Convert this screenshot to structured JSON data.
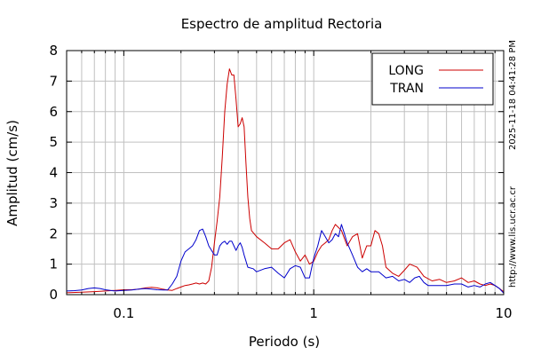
{
  "chart_data": {
    "type": "line",
    "title": "Espectro de amplitud Rectoria",
    "xlabel": "Periodo (s)",
    "ylabel": "Amplitud (cm/s)",
    "x_scale": "log",
    "xlim": [
      0.05,
      10
    ],
    "ylim": [
      0,
      8
    ],
    "x_ticks": [
      0.1,
      1,
      10
    ],
    "x_tick_labels": [
      "0.1",
      "1",
      "10"
    ],
    "y_ticks": [
      0,
      1,
      2,
      3,
      4,
      5,
      6,
      7,
      8
    ],
    "y_tick_labels": [
      "0",
      "1",
      "2",
      "3",
      "4",
      "5",
      "6",
      "7",
      "8"
    ],
    "grid": true,
    "legend_position": "top-right",
    "side_labels": [
      "2025-11-18 04:41:28 PM",
      "http://www.lis.ucr.ac.cr"
    ],
    "series": [
      {
        "name": "LONG",
        "color": "#cc0000",
        "points": [
          [
            0.05,
            0.06
          ],
          [
            0.06,
            0.08
          ],
          [
            0.07,
            0.1
          ],
          [
            0.08,
            0.12
          ],
          [
            0.09,
            0.14
          ],
          [
            0.1,
            0.16
          ],
          [
            0.11,
            0.16
          ],
          [
            0.12,
            0.18
          ],
          [
            0.13,
            0.22
          ],
          [
            0.14,
            0.24
          ],
          [
            0.15,
            0.22
          ],
          [
            0.16,
            0.18
          ],
          [
            0.17,
            0.15
          ],
          [
            0.18,
            0.14
          ],
          [
            0.19,
            0.2
          ],
          [
            0.2,
            0.25
          ],
          [
            0.21,
            0.3
          ],
          [
            0.22,
            0.32
          ],
          [
            0.23,
            0.35
          ],
          [
            0.24,
            0.38
          ],
          [
            0.25,
            0.35
          ],
          [
            0.26,
            0.38
          ],
          [
            0.27,
            0.35
          ],
          [
            0.28,
            0.45
          ],
          [
            0.29,
            0.9
          ],
          [
            0.3,
            1.7
          ],
          [
            0.31,
            2.4
          ],
          [
            0.32,
            3.2
          ],
          [
            0.33,
            4.5
          ],
          [
            0.34,
            6.0
          ],
          [
            0.35,
            6.9
          ],
          [
            0.36,
            7.4
          ],
          [
            0.37,
            7.2
          ],
          [
            0.38,
            7.2
          ],
          [
            0.39,
            6.4
          ],
          [
            0.4,
            5.5
          ],
          [
            0.41,
            5.6
          ],
          [
            0.42,
            5.8
          ],
          [
            0.43,
            5.5
          ],
          [
            0.44,
            4.3
          ],
          [
            0.45,
            3.2
          ],
          [
            0.46,
            2.5
          ],
          [
            0.47,
            2.1
          ],
          [
            0.5,
            1.9
          ],
          [
            0.55,
            1.7
          ],
          [
            0.6,
            1.5
          ],
          [
            0.65,
            1.5
          ],
          [
            0.7,
            1.7
          ],
          [
            0.75,
            1.8
          ],
          [
            0.8,
            1.4
          ],
          [
            0.85,
            1.1
          ],
          [
            0.9,
            1.3
          ],
          [
            0.95,
            1.0
          ],
          [
            1.0,
            1.1
          ],
          [
            1.05,
            1.4
          ],
          [
            1.1,
            1.6
          ],
          [
            1.15,
            1.7
          ],
          [
            1.2,
            1.8
          ],
          [
            1.25,
            2.1
          ],
          [
            1.3,
            2.3
          ],
          [
            1.35,
            2.2
          ],
          [
            1.4,
            2.1
          ],
          [
            1.5,
            1.6
          ],
          [
            1.6,
            1.9
          ],
          [
            1.7,
            2.0
          ],
          [
            1.8,
            1.2
          ],
          [
            1.9,
            1.6
          ],
          [
            2.0,
            1.6
          ],
          [
            2.1,
            2.1
          ],
          [
            2.2,
            2.0
          ],
          [
            2.3,
            1.6
          ],
          [
            2.4,
            0.9
          ],
          [
            2.6,
            0.7
          ],
          [
            2.8,
            0.6
          ],
          [
            3.0,
            0.8
          ],
          [
            3.2,
            1.0
          ],
          [
            3.5,
            0.9
          ],
          [
            3.8,
            0.6
          ],
          [
            4.2,
            0.45
          ],
          [
            4.6,
            0.5
          ],
          [
            5.0,
            0.4
          ],
          [
            5.5,
            0.45
          ],
          [
            6.0,
            0.55
          ],
          [
            6.5,
            0.4
          ],
          [
            7.0,
            0.45
          ],
          [
            7.5,
            0.35
          ],
          [
            8.0,
            0.3
          ],
          [
            8.5,
            0.35
          ],
          [
            9.0,
            0.3
          ],
          [
            9.5,
            0.2
          ],
          [
            10.0,
            0.1
          ]
        ]
      },
      {
        "name": "TRAN",
        "color": "#0000cc",
        "points": [
          [
            0.05,
            0.12
          ],
          [
            0.055,
            0.13
          ],
          [
            0.06,
            0.15
          ],
          [
            0.065,
            0.2
          ],
          [
            0.07,
            0.22
          ],
          [
            0.075,
            0.2
          ],
          [
            0.08,
            0.16
          ],
          [
            0.09,
            0.12
          ],
          [
            0.1,
            0.14
          ],
          [
            0.11,
            0.15
          ],
          [
            0.12,
            0.18
          ],
          [
            0.13,
            0.2
          ],
          [
            0.14,
            0.18
          ],
          [
            0.15,
            0.16
          ],
          [
            0.16,
            0.15
          ],
          [
            0.17,
            0.15
          ],
          [
            0.18,
            0.35
          ],
          [
            0.19,
            0.6
          ],
          [
            0.2,
            1.1
          ],
          [
            0.21,
            1.4
          ],
          [
            0.22,
            1.5
          ],
          [
            0.23,
            1.6
          ],
          [
            0.24,
            1.8
          ],
          [
            0.25,
            2.1
          ],
          [
            0.26,
            2.15
          ],
          [
            0.27,
            1.9
          ],
          [
            0.28,
            1.6
          ],
          [
            0.29,
            1.45
          ],
          [
            0.3,
            1.3
          ],
          [
            0.31,
            1.3
          ],
          [
            0.32,
            1.6
          ],
          [
            0.33,
            1.7
          ],
          [
            0.34,
            1.75
          ],
          [
            0.35,
            1.65
          ],
          [
            0.36,
            1.75
          ],
          [
            0.37,
            1.75
          ],
          [
            0.38,
            1.6
          ],
          [
            0.39,
            1.45
          ],
          [
            0.4,
            1.6
          ],
          [
            0.41,
            1.7
          ],
          [
            0.42,
            1.55
          ],
          [
            0.43,
            1.3
          ],
          [
            0.45,
            0.9
          ],
          [
            0.48,
            0.85
          ],
          [
            0.5,
            0.75
          ],
          [
            0.55,
            0.85
          ],
          [
            0.6,
            0.9
          ],
          [
            0.65,
            0.7
          ],
          [
            0.7,
            0.55
          ],
          [
            0.75,
            0.85
          ],
          [
            0.8,
            0.95
          ],
          [
            0.85,
            0.9
          ],
          [
            0.9,
            0.55
          ],
          [
            0.95,
            0.55
          ],
          [
            1.0,
            1.2
          ],
          [
            1.05,
            1.6
          ],
          [
            1.1,
            2.1
          ],
          [
            1.15,
            1.9
          ],
          [
            1.2,
            1.7
          ],
          [
            1.25,
            1.8
          ],
          [
            1.3,
            2.0
          ],
          [
            1.35,
            1.9
          ],
          [
            1.4,
            2.3
          ],
          [
            1.45,
            2.0
          ],
          [
            1.5,
            1.7
          ],
          [
            1.6,
            1.3
          ],
          [
            1.7,
            0.9
          ],
          [
            1.8,
            0.75
          ],
          [
            1.9,
            0.85
          ],
          [
            2.0,
            0.75
          ],
          [
            2.2,
            0.75
          ],
          [
            2.4,
            0.55
          ],
          [
            2.6,
            0.6
          ],
          [
            2.8,
            0.45
          ],
          [
            3.0,
            0.5
          ],
          [
            3.2,
            0.4
          ],
          [
            3.4,
            0.55
          ],
          [
            3.6,
            0.6
          ],
          [
            3.8,
            0.4
          ],
          [
            4.0,
            0.3
          ],
          [
            4.5,
            0.3
          ],
          [
            5.0,
            0.3
          ],
          [
            5.5,
            0.35
          ],
          [
            6.0,
            0.35
          ],
          [
            6.5,
            0.25
          ],
          [
            7.0,
            0.3
          ],
          [
            7.5,
            0.25
          ],
          [
            8.0,
            0.35
          ],
          [
            8.5,
            0.4
          ],
          [
            9.0,
            0.3
          ],
          [
            9.5,
            0.2
          ],
          [
            10.0,
            0.05
          ]
        ]
      }
    ]
  }
}
